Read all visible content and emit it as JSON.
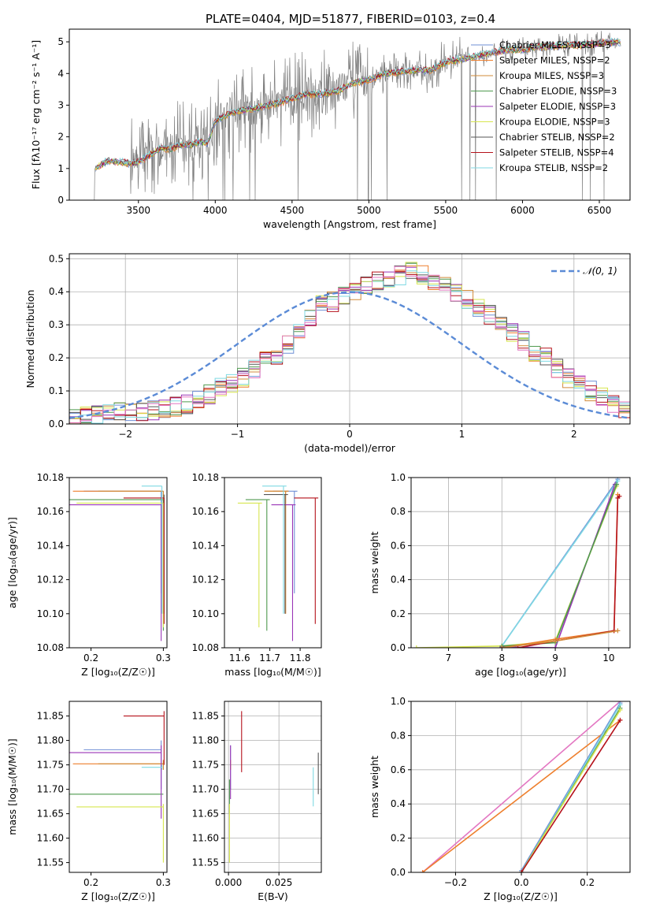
{
  "figure": {
    "title": "PLATE=0404, MJD=51877, FIBERID=0103, z=0.4"
  },
  "series_colors": {
    "Chabrier MILES": "#6f8fd6",
    "Salpeter MILES": "#ee7f2d",
    "Kroupa MILES": "#d28b3a",
    "Chabrier ELODIE": "#4f9a4f",
    "Salpeter ELODIE": "#9a35b6",
    "Kroupa ELODIE": "#d7e64f",
    "Chabrier STELIB": "#555555",
    "Salpeter STELIB": "#b5121b",
    "Kroupa STELIB": "#7fd9e3",
    "data": "#7f7f7f",
    "pink": "#e377c2",
    "normal": "#5b8bd6"
  },
  "chart_data": [
    {
      "id": "spectrum",
      "type": "line",
      "xlabel": "wavelength [Angstrom, rest frame]",
      "ylabel": "Flux [fλ10⁻¹⁷ erg cm⁻² s⁻¹ A⁻¹]",
      "xlim": [
        3050,
        6700
      ],
      "ylim": [
        0,
        5.4
      ],
      "xticks": [
        3500,
        4000,
        4500,
        5000,
        5500,
        6000,
        6500
      ],
      "yticks": [
        0,
        1,
        2,
        3,
        4,
        5
      ],
      "legend": [
        "Chabrier MILES, NSSP=3",
        "Salpeter MILES, NSSP=2",
        "Kroupa MILES, NSSP=3",
        "Chabrier ELODIE, NSSP=3",
        "Salpeter ELODIE, NSSP=3",
        "Kroupa ELODIE, NSSP=3",
        "Chabrier STELIB, NSSP=2",
        "Salpeter STELIB, NSSP=4",
        "Kroupa STELIB, NSSP=2"
      ],
      "legend_placement": "upper right",
      "model_curve": {
        "x": [
          3220,
          3250,
          3300,
          3350,
          3400,
          3450,
          3500,
          3550,
          3600,
          3650,
          3700,
          3750,
          3800,
          3850,
          3900,
          3950,
          4000,
          4100,
          4200,
          4300,
          4400,
          4500,
          4600,
          4700,
          4800,
          4900,
          5000,
          5100,
          5200,
          5300,
          5400,
          5500,
          5600,
          5700,
          5800,
          5900,
          6000,
          6100,
          6200,
          6300,
          6400,
          6500,
          6600
        ],
        "y": [
          1.0,
          1.1,
          1.25,
          1.2,
          1.2,
          1.15,
          1.2,
          1.35,
          1.5,
          1.65,
          1.6,
          1.7,
          1.75,
          1.75,
          1.85,
          1.8,
          2.5,
          2.75,
          2.85,
          2.95,
          3.05,
          3.2,
          3.35,
          3.35,
          3.45,
          3.7,
          3.8,
          4.0,
          4.05,
          4.1,
          4.1,
          4.35,
          4.45,
          4.55,
          4.65,
          4.75,
          4.75,
          4.85,
          4.85,
          4.9,
          4.9,
          4.95,
          5.0
        ]
      },
      "data_x_range": [
        3210,
        6640
      ]
    },
    {
      "id": "residuals",
      "type": "line",
      "xlabel": "(data-model)/error",
      "ylabel": "Normed distribution",
      "xlim": [
        -2.5,
        2.5
      ],
      "ylim": [
        0,
        0.515
      ],
      "xticks": [
        -2,
        -1,
        0,
        1,
        2
      ],
      "yticks": [
        0.0,
        0.1,
        0.2,
        0.3,
        0.4,
        0.5
      ],
      "legend": [
        "𝒩(0, 1)"
      ],
      "legend_placement": "upper right",
      "bin_edges_start": -2.5,
      "bin_width": 0.1,
      "histogram": [
        0.018,
        0.022,
        0.028,
        0.03,
        0.034,
        0.035,
        0.04,
        0.042,
        0.045,
        0.052,
        0.06,
        0.072,
        0.09,
        0.11,
        0.12,
        0.14,
        0.165,
        0.19,
        0.21,
        0.24,
        0.28,
        0.325,
        0.36,
        0.37,
        0.385,
        0.4,
        0.42,
        0.43,
        0.44,
        0.45,
        0.46,
        0.45,
        0.43,
        0.42,
        0.4,
        0.375,
        0.35,
        0.33,
        0.31,
        0.28,
        0.25,
        0.22,
        0.2,
        0.17,
        0.14,
        0.12,
        0.1,
        0.08,
        0.06,
        0.04
      ]
    },
    {
      "id": "age-vs-Z",
      "type": "scatter",
      "xlabel": "Z [log₁₀(Z/Z☉)]",
      "ylabel": "age  [log₁₀(age/yr)]",
      "xlim": [
        0.17,
        0.305
      ],
      "ylim": [
        10.08,
        10.18
      ],
      "xticks": [
        0.2,
        0.3
      ],
      "yticks": [
        10.08,
        10.1,
        10.12,
        10.14,
        10.16,
        10.18
      ]
    },
    {
      "id": "age-vs-mass",
      "type": "scatter",
      "xlabel": "mass [log₁₀(M/M☉)]",
      "ylabel": "",
      "xlim": [
        11.55,
        11.87
      ],
      "ylim": [
        10.08,
        10.18
      ],
      "xticks": [
        11.6,
        11.7,
        11.8
      ],
      "yticks": [
        10.08,
        10.1,
        10.12,
        10.14,
        10.16,
        10.18
      ]
    },
    {
      "id": "weight-vs-age",
      "type": "line",
      "xlabel": "age  [log₁₀(age/yr)]",
      "ylabel": "mass weight",
      "xlim": [
        6.3,
        10.4
      ],
      "ylim": [
        0,
        1.0
      ],
      "xticks": [
        7,
        8,
        9,
        10
      ],
      "yticks": [
        0.0,
        0.2,
        0.4,
        0.6,
        0.8,
        1.0
      ]
    },
    {
      "id": "mass-vs-Z",
      "type": "scatter",
      "xlabel": "Z [log₁₀(Z/Z☉)]",
      "ylabel": "mass [log₁₀(M/M☉)]",
      "xlim": [
        0.17,
        0.305
      ],
      "ylim": [
        11.53,
        11.88
      ],
      "xticks": [
        0.2,
        0.3
      ],
      "yticks": [
        11.55,
        11.6,
        11.65,
        11.7,
        11.75,
        11.8,
        11.85
      ]
    },
    {
      "id": "mass-vs-EBV",
      "type": "scatter",
      "xlabel": "E(B-V)",
      "ylabel": "",
      "xlim": [
        -0.002,
        0.046
      ],
      "ylim": [
        11.53,
        11.88
      ],
      "xticks": [
        0.0,
        0.025
      ],
      "xticklabels": [
        "0.000",
        "0.025"
      ],
      "yticks": [
        11.55,
        11.6,
        11.65,
        11.7,
        11.75,
        11.8,
        11.85
      ]
    },
    {
      "id": "weight-vs-Z",
      "type": "line",
      "xlabel": "Z [log₁₀(Z/Z☉)]",
      "ylabel": "mass weight",
      "xlim": [
        -0.335,
        0.33
      ],
      "ylim": [
        0,
        1.0
      ],
      "xticks": [
        -0.2,
        0.0,
        0.2
      ],
      "xticklabels": [
        "−0.2",
        "0.0",
        "0.2"
      ],
      "yticks": [
        0.0,
        0.2,
        0.4,
        0.6,
        0.8,
        1.0
      ]
    }
  ],
  "fits": [
    {
      "name": "Chabrier MILES",
      "Z": 0.297,
      "Zlo": 0.19,
      "age": 10.172,
      "agelo": 10.112,
      "mass": 11.781,
      "masslo": 11.7,
      "masshi": 11.8,
      "ebv": 0.001,
      "ebvlo": 11.7,
      "ebvhi": 11.79
    },
    {
      "name": "Salpeter MILES",
      "Z": 0.3,
      "Zlo": 0.175,
      "age": 10.172,
      "agelo": 10.1,
      "mass": 11.752,
      "masslo": 11.74,
      "masshi": 11.76,
      "ebv": 0.001,
      "ebvlo": 11.74,
      "ebvhi": 11.76
    },
    {
      "name": "Kroupa MILES",
      "Z": 0.3,
      "Zlo": 0.21,
      "age": 10.172,
      "agelo": 10.1,
      "mass": 11.752,
      "masslo": 11.74,
      "masshi": 11.76,
      "ebv": 0.001,
      "ebvlo": 11.74,
      "ebvhi": 11.76
    },
    {
      "name": "Chabrier ELODIE",
      "Z": 0.3,
      "Zlo": 0.17,
      "age": 10.167,
      "agelo": 10.09,
      "mass": 11.69,
      "masslo": 11.69,
      "masshi": 11.69,
      "ebv": 0.0005,
      "ebvlo": 11.65,
      "ebvhi": 11.72
    },
    {
      "name": "Salpeter ELODIE",
      "Z": 0.297,
      "Zlo": 0.17,
      "age": 10.164,
      "agelo": 10.084,
      "mass": 11.775,
      "masslo": 11.64,
      "masshi": 11.79,
      "ebv": 0.001,
      "ebvlo": 11.68,
      "ebvhi": 11.79
    },
    {
      "name": "Kroupa ELODIE",
      "Z": 0.3,
      "Zlo": 0.18,
      "age": 10.165,
      "agelo": 10.092,
      "mass": 11.664,
      "masslo": 11.55,
      "masshi": 11.67,
      "ebv": 0.0005,
      "ebvlo": 11.55,
      "ebvhi": 11.67
    },
    {
      "name": "Chabrier STELIB",
      "Z": 0.301,
      "Zlo": 0.301,
      "age": 10.17,
      "agelo": 10.1,
      "mass": 11.75,
      "masslo": 11.75,
      "masshi": 11.75,
      "ebv": 0.0445,
      "ebvlo": 11.69,
      "ebvhi": 11.775
    },
    {
      "name": "Salpeter STELIB",
      "Z": 0.301,
      "Zlo": 0.245,
      "age": 10.168,
      "agelo": 10.094,
      "mass": 11.85,
      "masslo": 11.75,
      "masshi": 11.86,
      "ebv": 0.0065,
      "ebvlo": 11.735,
      "ebvhi": 11.86
    },
    {
      "name": "Kroupa STELIB",
      "Z": 0.298,
      "Zlo": 0.27,
      "age": 10.175,
      "agelo": 10.1,
      "mass": 11.745,
      "masslo": 11.74,
      "masshi": 11.75,
      "ebv": 0.042,
      "ebvlo": 11.665,
      "ebvhi": 11.745
    }
  ],
  "weights_vs_age": [
    {
      "name": "Chabrier MILES",
      "age": [
        8.0,
        10.17
      ],
      "w": [
        0.01,
        0.99
      ]
    },
    {
      "name": "Kroupa STELIB",
      "age": [
        8.0,
        10.17
      ],
      "w": [
        0.01,
        0.98
      ]
    },
    {
      "name": "Salpeter ELODIE",
      "age": [
        8.0,
        9.0,
        10.12
      ],
      "w": [
        0.005,
        0.0,
        0.96
      ]
    },
    {
      "name": "Kroupa ELODIE",
      "age": [
        6.4,
        8.0,
        9.0,
        10.15
      ],
      "w": [
        0.0,
        0.01,
        0.04,
        0.95
      ]
    },
    {
      "name": "Chabrier ELODIE",
      "age": [
        8.0,
        9.0,
        10.15
      ],
      "w": [
        0.01,
        0.03,
        0.96
      ]
    },
    {
      "name": "Salpeter MILES",
      "age": [
        8.0,
        9.0,
        10.1,
        10.17
      ],
      "w": [
        0.0,
        0.05,
        0.1,
        0.9
      ]
    },
    {
      "name": "Salpeter STELIB",
      "age": [
        8.3,
        9.0,
        10.1,
        10.17,
        10.2
      ],
      "w": [
        0.0,
        0.04,
        0.1,
        0.88,
        0.89
      ]
    },
    {
      "name": "Kroupa MILES",
      "age": [
        8.0,
        9.0,
        10.17
      ],
      "w": [
        0.0,
        0.04,
        0.1
      ]
    }
  ],
  "weights_vs_Z": [
    {
      "name": "pink",
      "Z": [
        -0.3,
        0.3
      ],
      "w": [
        0.0,
        1.0
      ]
    },
    {
      "name": "Salpeter MILES",
      "Z": [
        -0.3,
        0.3
      ],
      "w": [
        0.0,
        0.89
      ]
    },
    {
      "name": "Chabrier MILES",
      "Z": [
        0.0,
        0.3
      ],
      "w": [
        0.01,
        0.99
      ]
    },
    {
      "name": "Kroupa STELIB",
      "Z": [
        0.0,
        0.3
      ],
      "w": [
        0.0,
        0.98
      ]
    },
    {
      "name": "Chabrier ELODIE",
      "Z": [
        0.0,
        0.3
      ],
      "w": [
        0.0,
        0.96
      ]
    },
    {
      "name": "Kroupa ELODIE",
      "Z": [
        0.0,
        0.3
      ],
      "w": [
        0.0,
        0.95
      ]
    },
    {
      "name": "Salpeter STELIB",
      "Z": [
        0.0,
        0.3
      ],
      "w": [
        0.0,
        0.89
      ]
    }
  ]
}
